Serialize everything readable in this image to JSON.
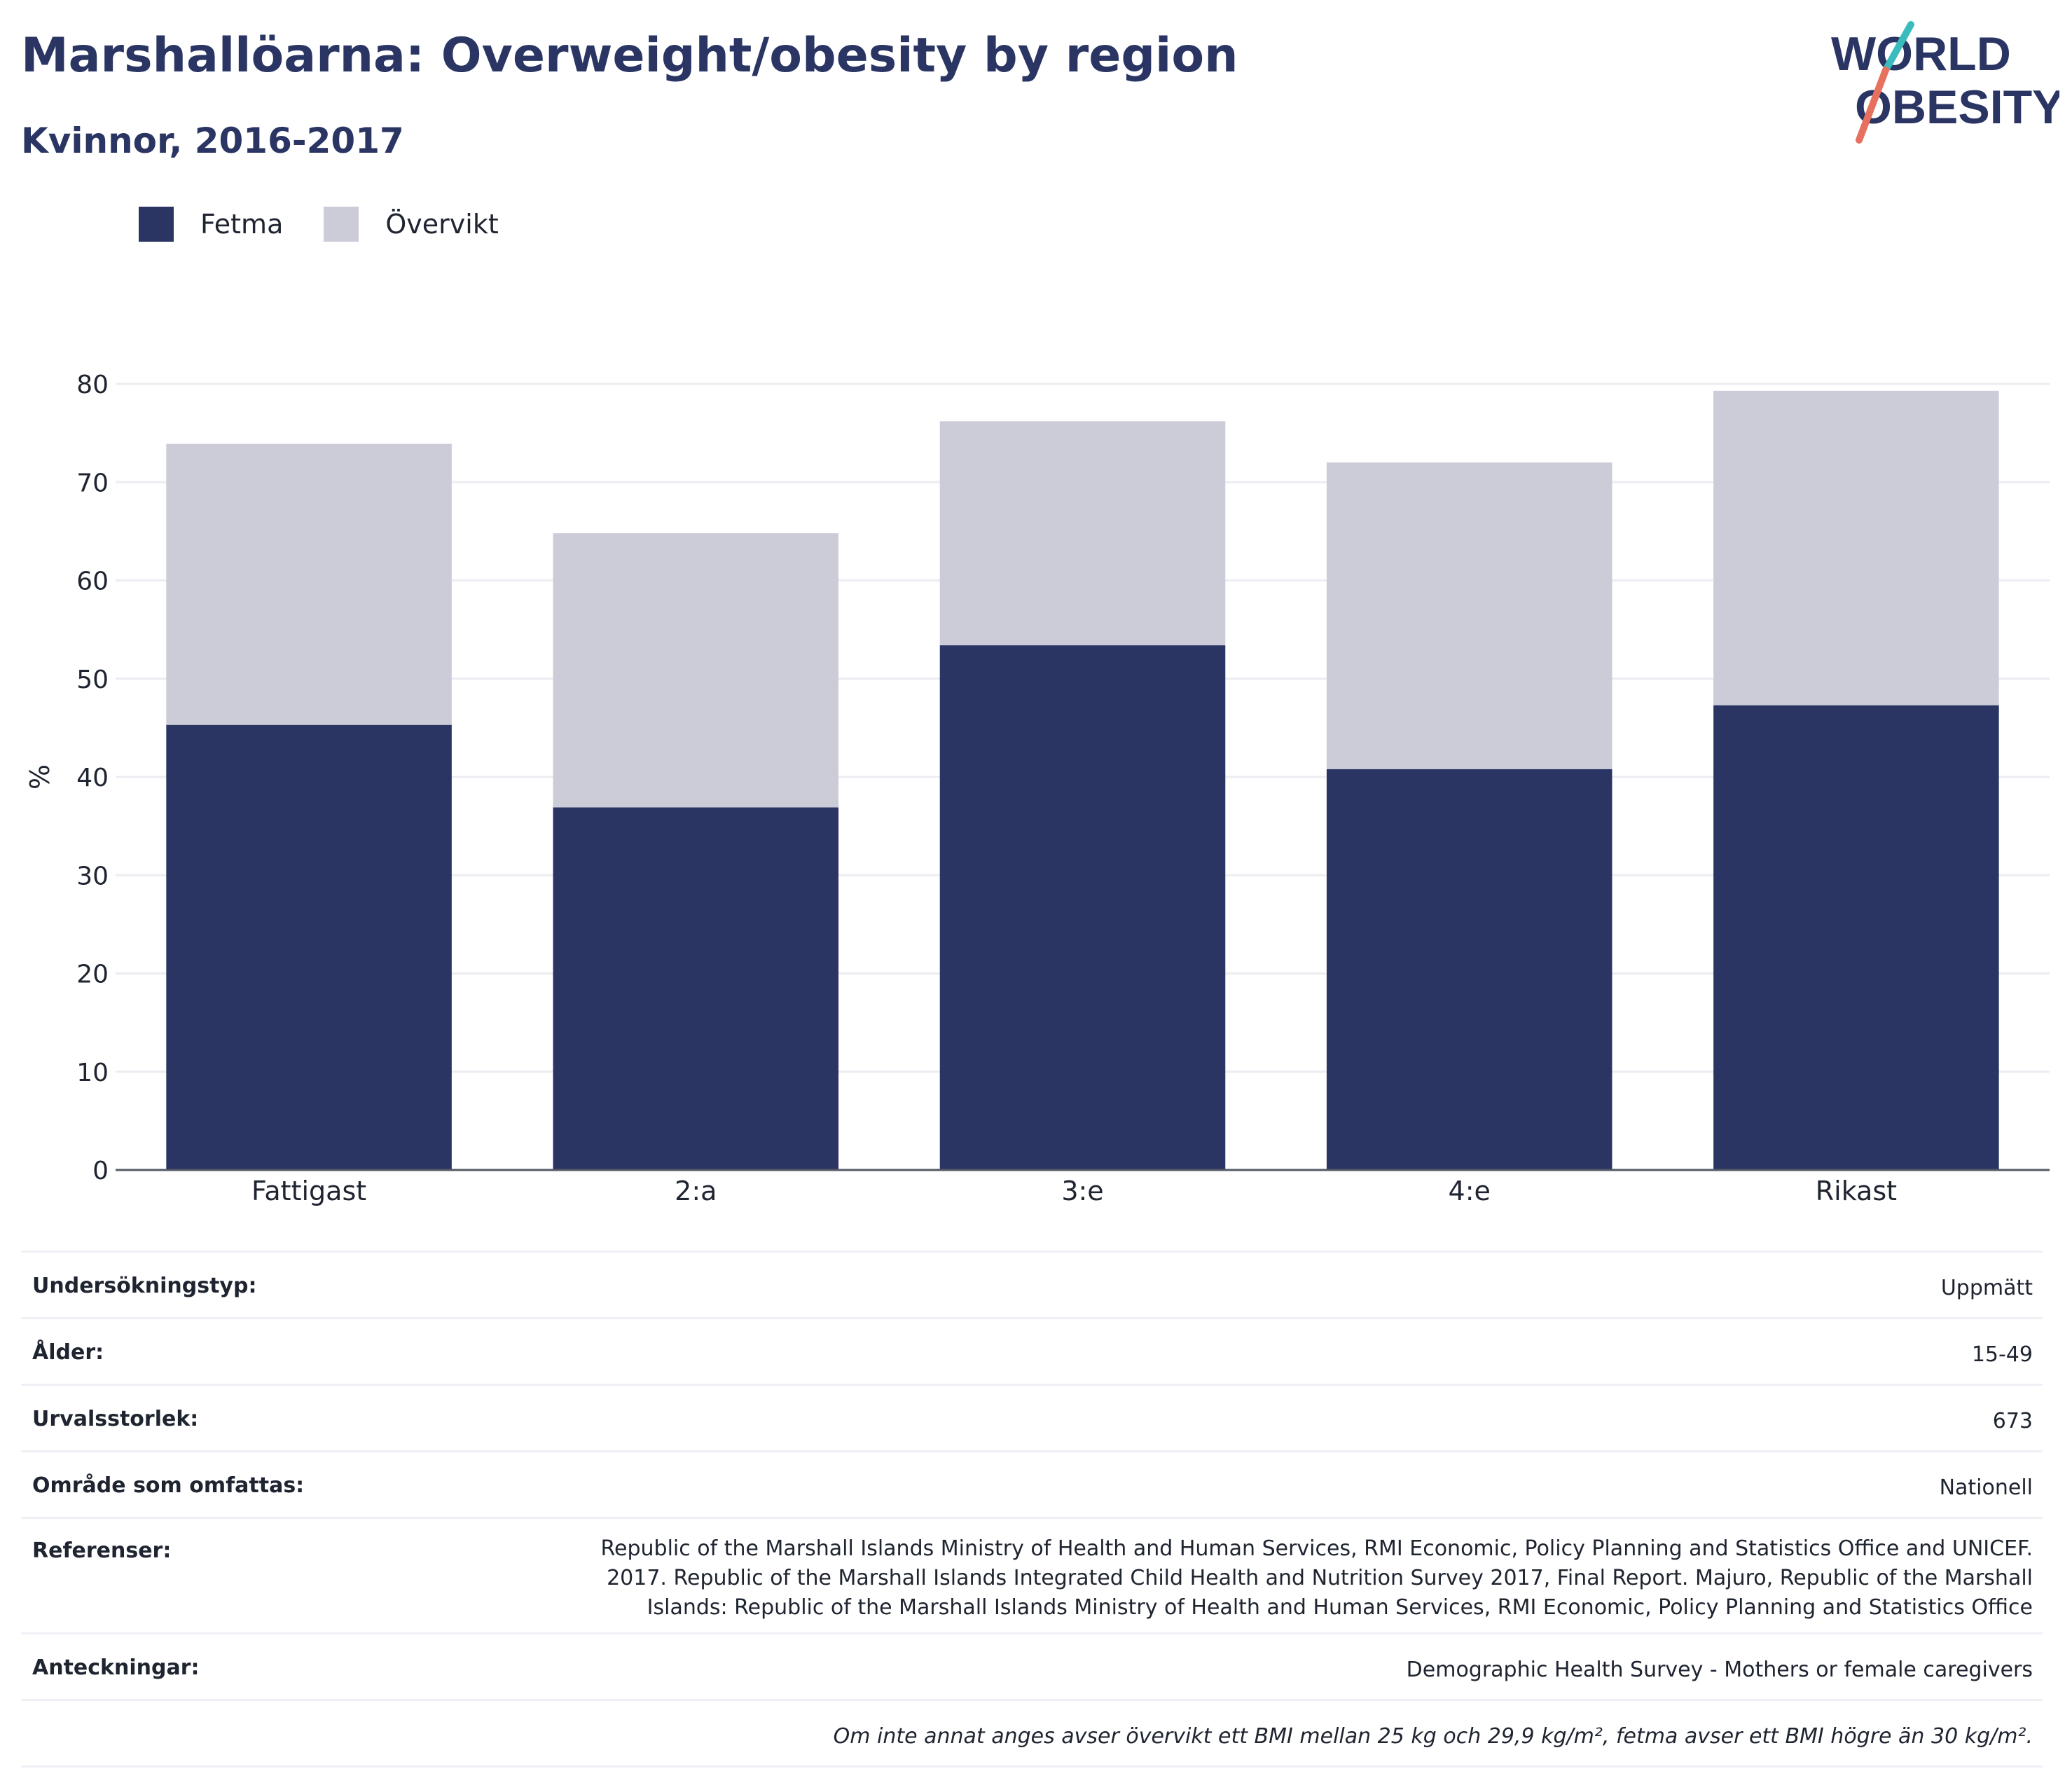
{
  "header": {
    "title": "Marshallöarna: Overweight/obesity by region",
    "subtitle": "Kvinnor, 2016-2017"
  },
  "logo": {
    "line1": "WORLD",
    "line2": "OBESITY"
  },
  "colors": {
    "fetma": "#2a3563",
    "overvikt": "#cbccd8",
    "logo_teal": "#3bbcbc",
    "logo_coral": "#e8705f"
  },
  "chart_data": {
    "type": "bar",
    "stacked": true,
    "categories": [
      "Fattigast",
      "2:a",
      "3:e",
      "4:e",
      "Rikast"
    ],
    "series": [
      {
        "name": "Fetma",
        "values": [
          45.3,
          36.9,
          53.4,
          40.8,
          47.3
        ]
      },
      {
        "name": "Övervikt",
        "values": [
          28.6,
          27.9,
          22.8,
          31.2,
          32.0
        ]
      }
    ],
    "ylabel": "%",
    "ylim": [
      0,
      80
    ],
    "yticks": [
      0,
      10,
      20,
      30,
      40,
      50,
      60,
      70,
      80
    ],
    "grid": true,
    "legend_position": "top-left"
  },
  "info": {
    "rows": [
      {
        "label": "Undersökningstyp:",
        "value": "Uppmätt"
      },
      {
        "label": "Ålder:",
        "value": "15-49"
      },
      {
        "label": "Urvalsstorlek:",
        "value": "673"
      },
      {
        "label": "Område som omfattas:",
        "value": "Nationell"
      },
      {
        "label": "Referenser:",
        "value": "Republic of the Marshall Islands Ministry of Health and Human Services, RMI Economic, Policy Planning and Statistics Office and UNICEF. 2017. Republic of the Marshall Islands Integrated Child Health and Nutrition Survey 2017, Final Report. Majuro, Republic of the Marshall Islands: Republic of the Marshall Islands Ministry of Health and Human Services, RMI Economic, Policy Planning and Statistics Office"
      },
      {
        "label": "Anteckningar:",
        "value": "Demographic Health Survey - Mothers or female caregivers"
      }
    ],
    "footnote": "Om inte annat anges avser övervikt ett BMI mellan 25 kg och 29,9 kg/m², fetma avser ett BMI högre än 30 kg/m²."
  }
}
